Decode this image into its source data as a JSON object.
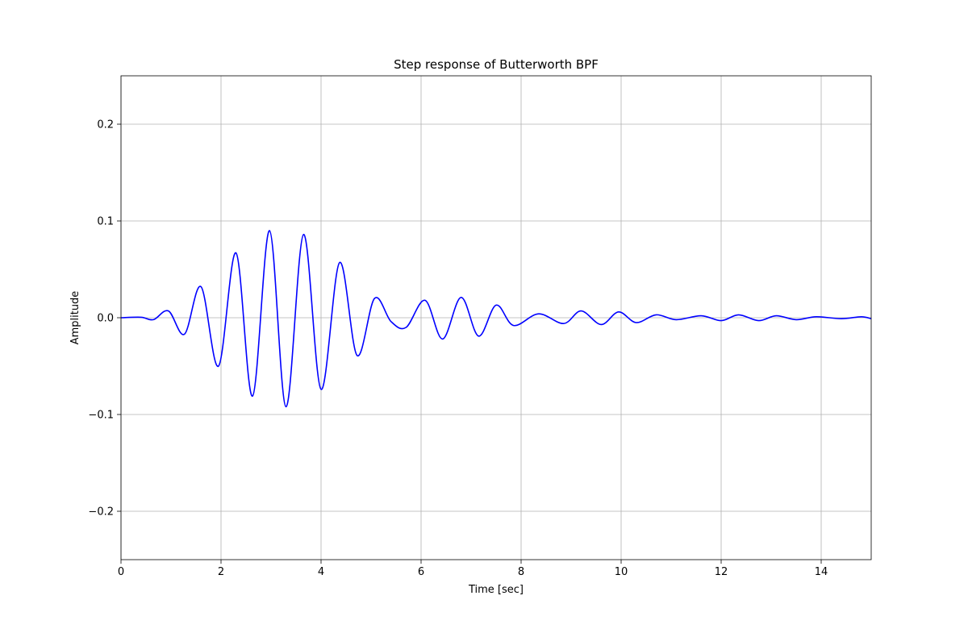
{
  "chart_data": {
    "type": "line",
    "title": "Step response of Butterworth BPF",
    "xlabel": "Time  [sec]",
    "ylabel": "Amplitude",
    "xlim": [
      0,
      15
    ],
    "ylim": [
      -0.25,
      0.25
    ],
    "grid": true,
    "x_ticks": [
      0,
      2,
      4,
      6,
      8,
      10,
      12,
      14
    ],
    "x_tick_labels": [
      "0",
      "2",
      "4",
      "6",
      "8",
      "10",
      "12",
      "14"
    ],
    "y_ticks": [
      -0.2,
      -0.1,
      0.0,
      0.1,
      0.2
    ],
    "y_tick_labels": [
      "−0.2",
      "−0.1",
      "0.0",
      "0.1",
      "0.2"
    ],
    "series": [
      {
        "color": "#0000ff",
        "x": [
          0,
          0.4,
          0.65,
          0.95,
          1.27,
          1.6,
          1.95,
          2.3,
          2.63,
          2.97,
          3.3,
          3.65,
          4.0,
          4.37,
          4.72,
          5.07,
          5.4,
          5.7,
          6.08,
          6.43,
          6.8,
          7.15,
          7.5,
          7.85,
          8.35,
          8.85,
          9.2,
          9.6,
          9.95,
          10.3,
          10.7,
          11.1,
          11.6,
          12.0,
          12.35,
          12.75,
          13.1,
          13.5,
          13.9,
          14.4,
          14.8,
          15.0
        ],
        "y": [
          0.0,
          0.0005,
          -0.002,
          0.007,
          -0.017,
          0.032,
          -0.05,
          0.067,
          -0.081,
          0.09,
          -0.092,
          0.086,
          -0.074,
          0.057,
          -0.039,
          0.02,
          -0.004,
          -0.01,
          0.018,
          -0.022,
          0.021,
          -0.019,
          0.013,
          -0.008,
          0.004,
          -0.006,
          0.007,
          -0.007,
          0.006,
          -0.005,
          0.003,
          -0.002,
          0.002,
          -0.003,
          0.003,
          -0.003,
          0.002,
          -0.002,
          0.001,
          -0.001,
          0.001,
          -0.001
        ]
      }
    ]
  }
}
